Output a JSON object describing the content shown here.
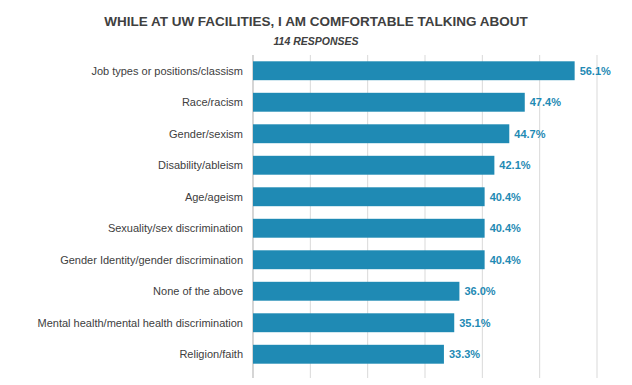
{
  "chart_data": {
    "type": "bar",
    "orientation": "horizontal",
    "title": "WHILE AT UW FACILITIES, I AM COMFORTABLE TALKING ABOUT",
    "subtitle": "114 RESPONSES",
    "categories": [
      "Job types or positions/classism",
      "Race/racism",
      "Gender/sexism",
      "Disability/ableism",
      "Age/ageism",
      "Sexuality/sex discrimination",
      "Gender Identity/gender discrimination",
      "None of the above",
      "Mental health/mental health discrimination",
      "Religion/faith"
    ],
    "values": [
      56.1,
      47.4,
      44.7,
      42.1,
      40.4,
      40.4,
      40.4,
      36.0,
      35.1,
      33.3
    ],
    "value_labels": [
      "56.1%",
      "47.4%",
      "44.7%",
      "42.1%",
      "40.4%",
      "40.4%",
      "40.4%",
      "36.0%",
      "35.1%",
      "33.3%"
    ],
    "color": "#1f8ab4",
    "xlim": [
      0,
      60
    ],
    "xticks": [
      0,
      10,
      20,
      30,
      40,
      50,
      60
    ],
    "grid": true,
    "data_labels": true,
    "tick_labels": "y"
  }
}
